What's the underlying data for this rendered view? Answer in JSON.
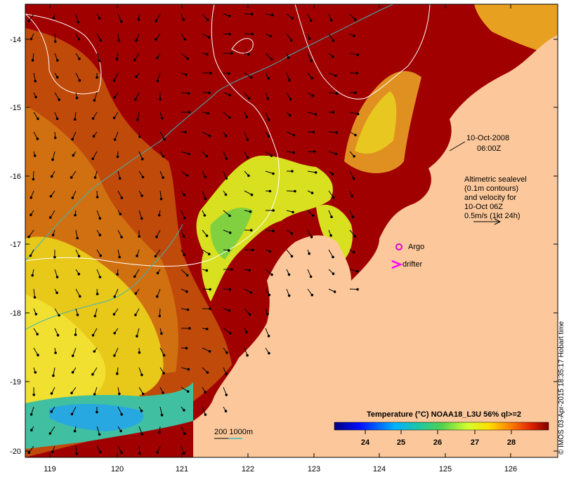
{
  "map": {
    "date": "10-Oct-2008",
    "time": "06:00Z",
    "legend_lines": [
      "Altimetric sealevel",
      "(0.1m contours)",
      "and velocity for",
      "10-Oct 06Z",
      "0.5m/s (1kt 24h)"
    ],
    "argo_label": "Argo",
    "drifter_label": "drifter",
    "depth_label": "200  1000m",
    "lon_ticks": [
      "119",
      "120",
      "121",
      "122",
      "123",
      "124",
      "125",
      "126"
    ],
    "lat_ticks": [
      "-14",
      "-15",
      "-16",
      "-17",
      "-18",
      "-19",
      "-20"
    ],
    "colorbar": {
      "title": "Temperature (°C) NOAA18_L3U 56% ql>=2",
      "ticks": [
        "24",
        "25",
        "26",
        "27",
        "28"
      ],
      "range": [
        23,
        29
      ]
    },
    "credit": "© IMOS 03-Apr-2015 18:35:17 Hobart time",
    "colors": {
      "land": "#fcc89b",
      "warm": "#a00000",
      "contour": "#ffffff",
      "isobath": "#3fb5b5",
      "argo": "#dd00dd",
      "drifter": "#ff00ff"
    }
  }
}
